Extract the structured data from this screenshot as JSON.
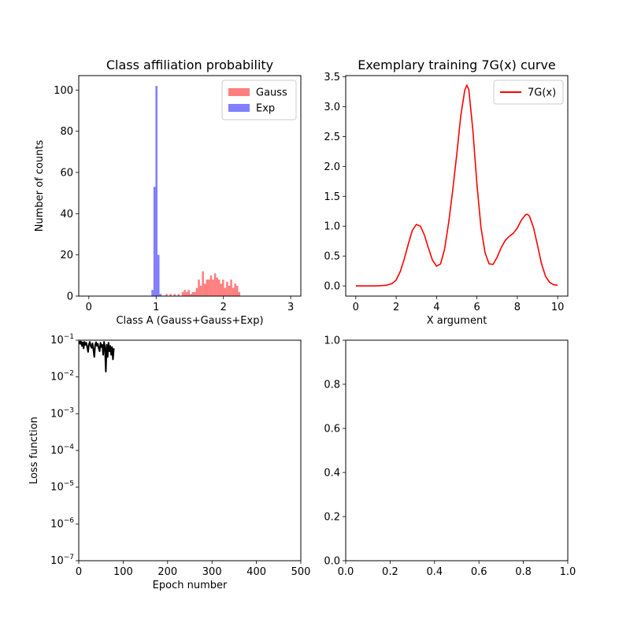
{
  "chart_data": [
    {
      "type": "bar",
      "title": "Class affiliation probability",
      "xlabel": "Class A (Gauss+Gauss+Exp)",
      "ylabel": "Number of counts",
      "xlim": [
        -0.15,
        3.15
      ],
      "ylim": [
        0,
        107
      ],
      "xticks": [
        0,
        1,
        2,
        3
      ],
      "yticks": [
        0,
        20,
        40,
        60,
        80,
        100
      ],
      "grid": false,
      "legend_position": "top-right",
      "bin_width": 0.03,
      "series": [
        {
          "name": "Gauss",
          "color": "#ff0000",
          "alpha": 0.5,
          "bins": [
            [
              1.14,
              1
            ],
            [
              1.2,
              1
            ],
            [
              1.26,
              1
            ],
            [
              1.32,
              1
            ],
            [
              1.38,
              2
            ],
            [
              1.41,
              3
            ],
            [
              1.44,
              2
            ],
            [
              1.47,
              3
            ],
            [
              1.5,
              1
            ],
            [
              1.53,
              2
            ],
            [
              1.56,
              2
            ],
            [
              1.59,
              4
            ],
            [
              1.62,
              8
            ],
            [
              1.65,
              5
            ],
            [
              1.68,
              12
            ],
            [
              1.71,
              6
            ],
            [
              1.74,
              8
            ],
            [
              1.77,
              8
            ],
            [
              1.8,
              10
            ],
            [
              1.83,
              8
            ],
            [
              1.86,
              11
            ],
            [
              1.89,
              9
            ],
            [
              1.92,
              8
            ],
            [
              1.95,
              6
            ],
            [
              1.98,
              8
            ],
            [
              2.01,
              4
            ],
            [
              2.04,
              7
            ],
            [
              2.07,
              5
            ],
            [
              2.1,
              8
            ],
            [
              2.13,
              4
            ],
            [
              2.16,
              6
            ],
            [
              2.19,
              5
            ],
            [
              2.22,
              2
            ]
          ]
        },
        {
          "name": "Exp",
          "color": "#0000ff",
          "alpha": 0.5,
          "bins": [
            [
              0.93,
              3
            ],
            [
              0.96,
              53
            ],
            [
              0.99,
              102
            ],
            [
              1.02,
              20
            ],
            [
              1.05,
              1
            ]
          ]
        }
      ]
    },
    {
      "type": "line",
      "title": "Exemplary training 7G(x) curve",
      "xlabel": "X argument",
      "ylabel": "",
      "xlim": [
        -0.5,
        10.5
      ],
      "ylim": [
        -0.17,
        3.52
      ],
      "xticks": [
        0,
        2,
        4,
        6,
        8,
        10
      ],
      "yticks": [
        0.0,
        0.5,
        1.0,
        1.5,
        2.0,
        2.5,
        3.0,
        3.5
      ],
      "grid": false,
      "legend_position": "top-right",
      "series": [
        {
          "name": "7G(x)",
          "color": "#ff0000",
          "x": [
            0,
            0.5,
            1,
            1.5,
            1.8,
            2,
            2.2,
            2.4,
            2.6,
            2.8,
            3,
            3.2,
            3.4,
            3.6,
            3.8,
            4,
            4.2,
            4.4,
            4.6,
            4.8,
            5,
            5.2,
            5.4,
            5.5,
            5.6,
            5.8,
            6,
            6.2,
            6.4,
            6.6,
            6.8,
            7,
            7.2,
            7.4,
            7.6,
            7.8,
            8,
            8.2,
            8.4,
            8.5,
            8.6,
            8.8,
            9,
            9.2,
            9.4,
            9.6,
            9.8,
            10
          ],
          "y": [
            0,
            0,
            0,
            0.01,
            0.04,
            0.1,
            0.24,
            0.45,
            0.7,
            0.93,
            1.03,
            1.0,
            0.85,
            0.63,
            0.43,
            0.33,
            0.37,
            0.62,
            1.06,
            1.6,
            2.2,
            2.85,
            3.28,
            3.36,
            3.28,
            2.6,
            1.7,
            0.98,
            0.56,
            0.37,
            0.36,
            0.48,
            0.64,
            0.76,
            0.83,
            0.88,
            0.97,
            1.1,
            1.19,
            1.2,
            1.17,
            0.98,
            0.68,
            0.37,
            0.16,
            0.06,
            0.02,
            0.01
          ]
        }
      ]
    },
    {
      "type": "line",
      "title": "",
      "xlabel": "Epoch number",
      "ylabel": "Loss function",
      "xlim": [
        0,
        500
      ],
      "ylim": [
        1e-07,
        0.1
      ],
      "yscale": "log",
      "xticks": [
        0,
        100,
        200,
        300,
        400,
        500
      ],
      "yticks": [
        1e-07,
        1e-06,
        1e-05,
        0.0001,
        0.001,
        0.01,
        0.1
      ],
      "grid": false,
      "series": [
        {
          "color": "#000000",
          "x": [
            1,
            3,
            5,
            7,
            9,
            11,
            13,
            15,
            17,
            19,
            21,
            23,
            25,
            27,
            29,
            31,
            33,
            35,
            37,
            39,
            41,
            43,
            45,
            47,
            49,
            51,
            53,
            55,
            57,
            59,
            61,
            63,
            65,
            67,
            69,
            71,
            73,
            75,
            77,
            79
          ],
          "y": [
            0.095,
            0.08,
            0.092,
            0.07,
            0.088,
            0.06,
            0.09,
            0.075,
            0.085,
            0.065,
            0.048,
            0.078,
            0.09,
            0.07,
            0.062,
            0.082,
            0.055,
            0.035,
            0.075,
            0.088,
            0.07,
            0.08,
            0.06,
            0.05,
            0.085,
            0.065,
            0.075,
            0.04,
            0.09,
            0.062,
            0.014,
            0.075,
            0.035,
            0.085,
            0.05,
            0.07,
            0.04,
            0.065,
            0.03,
            0.06
          ]
        }
      ]
    },
    {
      "type": "line",
      "title": "",
      "xlabel": "",
      "ylabel": "",
      "xlim": [
        0,
        1
      ],
      "ylim": [
        0,
        1
      ],
      "xticks": [
        0.0,
        0.2,
        0.4,
        0.6,
        0.8,
        1.0
      ],
      "yticks": [
        0.0,
        0.2,
        0.4,
        0.6,
        0.8,
        1.0
      ],
      "grid": false,
      "series": []
    }
  ]
}
